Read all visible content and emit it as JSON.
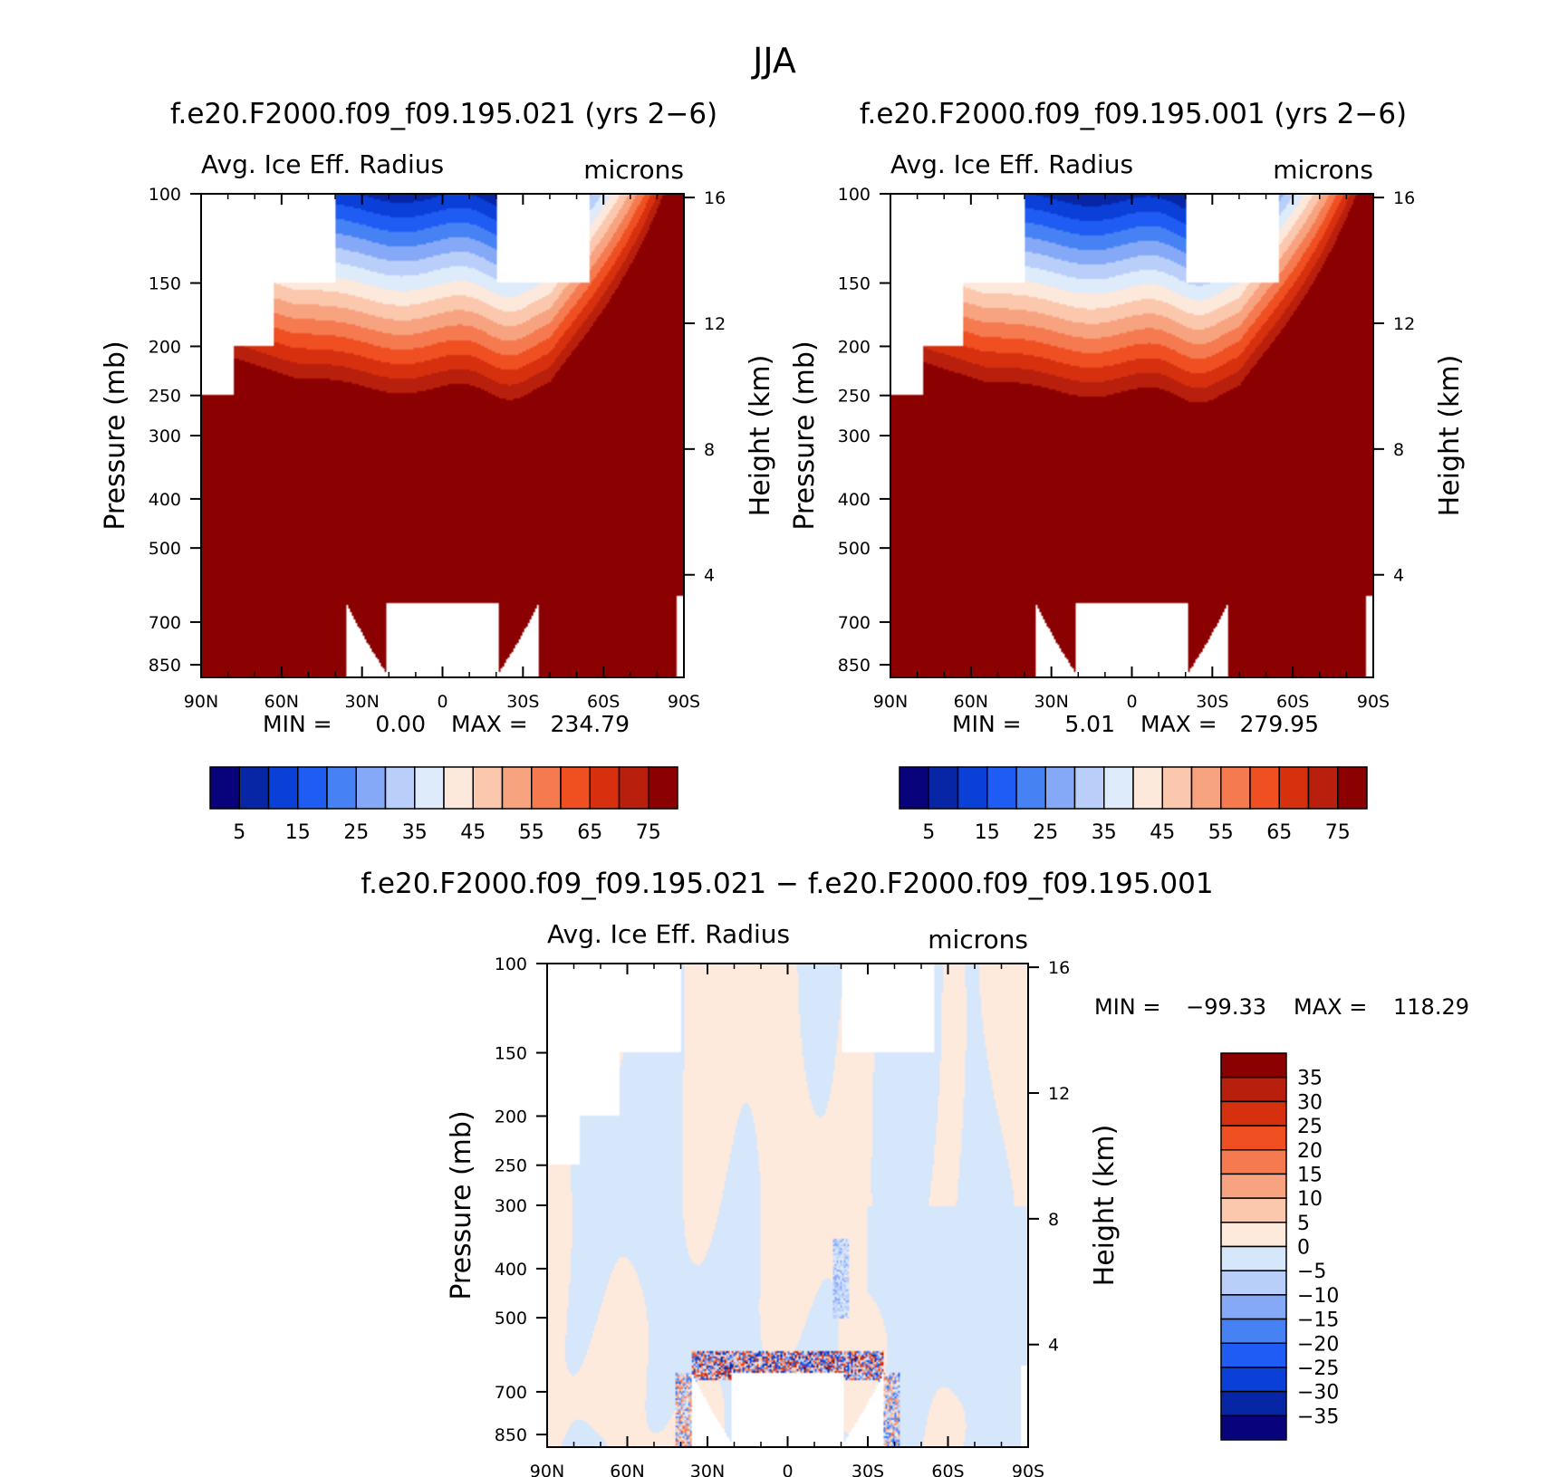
{
  "figure_title": "JJA",
  "palettes": {
    "abs": [
      "#08037a",
      "#0626a6",
      "#0a3fd8",
      "#1f5cf3",
      "#4682f4",
      "#86a9f7",
      "#b9cffa",
      "#ddebfb",
      "#fde8dc",
      "#fbc7ad",
      "#f8a380",
      "#f67a4f",
      "#f04f21",
      "#d7300f",
      "#b81f0c",
      "#8b0000"
    ],
    "diff": [
      "#08037a",
      "#0626a6",
      "#0a3fd8",
      "#1f5cf3",
      "#4682f4",
      "#86a9f7",
      "#b9cffa",
      "#d6e6fb",
      "#fdeadd",
      "#fbc7ad",
      "#f8a380",
      "#f67a4f",
      "#f04f21",
      "#d7300f",
      "#b81f0c",
      "#8b0000"
    ],
    "missing": "#ffffff"
  },
  "chart_data": [
    {
      "type": "heatmap",
      "panel": "top-left",
      "title": "f.e20.F2000.f09_f09.195.021 (yrs 2−6)",
      "left_string": "Avg. Ice Eff. Radius",
      "right_string": "microns",
      "ylabel": "Pressure (mb)",
      "ylabel_right": "Height (km)",
      "x_ticks": [
        "90N",
        "60N",
        "30N",
        "0",
        "30S",
        "60S",
        "90S"
      ],
      "y_ticks": [
        100,
        150,
        200,
        250,
        300,
        400,
        500,
        700,
        850
      ],
      "y_ticks_right": [
        16,
        12,
        8,
        4
      ],
      "xlim": [
        90,
        -90
      ],
      "ylim": [
        100,
        900
      ],
      "y_scale": "log",
      "stats": {
        "label_min": "MIN =",
        "min": "0.00",
        "label_max": "MAX =",
        "max": "234.79"
      },
      "colorbar": {
        "orientation": "horizontal",
        "labels": [
          "5",
          "15",
          "25",
          "35",
          "45",
          "55",
          "65",
          "75"
        ]
      },
      "field": {
        "run": 0
      }
    },
    {
      "type": "heatmap",
      "panel": "top-right",
      "title": "f.e20.F2000.f09_f09.195.001 (yrs 2−6)",
      "left_string": "Avg. Ice Eff. Radius",
      "right_string": "microns",
      "ylabel": "Pressure (mb)",
      "ylabel_right": "Height (km)",
      "x_ticks": [
        "90N",
        "60N",
        "30N",
        "0",
        "30S",
        "60S",
        "90S"
      ],
      "y_ticks": [
        100,
        150,
        200,
        250,
        300,
        400,
        500,
        700,
        850
      ],
      "y_ticks_right": [
        16,
        12,
        8,
        4
      ],
      "xlim": [
        90,
        -90
      ],
      "ylim": [
        100,
        900
      ],
      "y_scale": "log",
      "stats": {
        "label_min": "MIN =",
        "min": "5.01",
        "label_max": "MAX =",
        "max": "279.95"
      },
      "colorbar": {
        "orientation": "horizontal",
        "labels": [
          "5",
          "15",
          "25",
          "35",
          "45",
          "55",
          "65",
          "75"
        ]
      },
      "field": {
        "run": 1
      }
    },
    {
      "type": "heatmap",
      "panel": "bottom",
      "title": "f.e20.F2000.f09_f09.195.021 − f.e20.F2000.f09_f09.195.001",
      "left_string": "Avg. Ice Eff. Radius",
      "right_string": "microns",
      "ylabel": "Pressure (mb)",
      "ylabel_right": "Height (km)",
      "x_ticks": [
        "90N",
        "60N",
        "30N",
        "0",
        "30S",
        "60S",
        "90S"
      ],
      "y_ticks": [
        100,
        150,
        200,
        250,
        300,
        400,
        500,
        700,
        850
      ],
      "y_ticks_right": [
        16,
        12,
        8,
        4
      ],
      "xlim": [
        90,
        -90
      ],
      "ylim": [
        100,
        900
      ],
      "y_scale": "log",
      "stats": {
        "label_min": "MIN =",
        "min": "−99.33",
        "label_max": "MAX =",
        "max": "118.29"
      },
      "colorbar": {
        "orientation": "vertical",
        "labels": [
          "35",
          "30",
          "25",
          "20",
          "15",
          "10",
          "5",
          "0",
          "−5",
          "−10",
          "−15",
          "−20",
          "−25",
          "−30",
          "−35"
        ]
      },
      "field": {
        "diff": true
      }
    }
  ]
}
